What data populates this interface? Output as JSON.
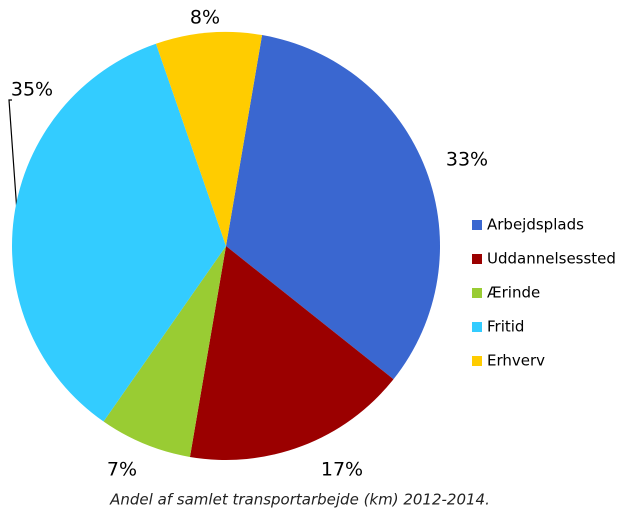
{
  "chart_data": {
    "type": "pie",
    "categories": [
      "Arbejdsplads",
      "Uddannelsessted",
      "Ærinde",
      "Fritid",
      "Erhverv"
    ],
    "values": [
      33,
      17,
      7,
      35,
      8
    ],
    "value_labels": [
      "33%",
      "17%",
      "7%",
      "35%",
      "8%"
    ],
    "colors": [
      "#3a67d0",
      "#9b0000",
      "#99cc33",
      "#33ccff",
      "#ffcc00"
    ],
    "caption": "Andel af samlet transportarbejde (km) 2012-2014."
  }
}
